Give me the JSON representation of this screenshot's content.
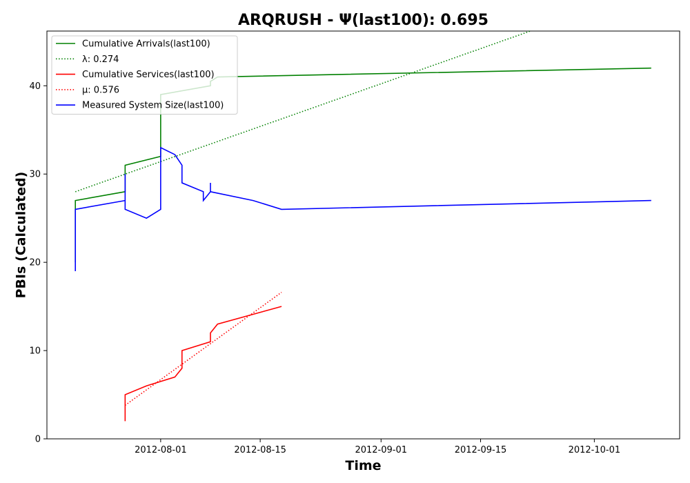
{
  "chart_data": {
    "type": "line",
    "title": "ARQRUSH -  Ψ(last100): 0.695",
    "xlabel": "Time",
    "ylabel": "PBIs (Calculated)",
    "xlim": [
      "2012-07-16",
      "2012-10-13"
    ],
    "ylim": [
      0,
      46.2
    ],
    "x_ticks": [
      "2012-08-01",
      "2012-08-15",
      "2012-09-01",
      "2012-09-15",
      "2012-10-01"
    ],
    "y_ticks": [
      0,
      10,
      20,
      30,
      40
    ],
    "grid": false,
    "legend_position": "top-left",
    "series": [
      {
        "name": "Cumulative Arrivals(last100)",
        "color": "#008000",
        "style": "solid",
        "points": [
          [
            "2012-07-20",
            20
          ],
          [
            "2012-07-20",
            27
          ],
          [
            "2012-07-27",
            28
          ],
          [
            "2012-07-27",
            31
          ],
          [
            "2012-08-01",
            32
          ],
          [
            "2012-08-01",
            32.3
          ],
          [
            "2012-08-01",
            39
          ],
          [
            "2012-08-08",
            40
          ],
          [
            "2012-08-08",
            40.5
          ],
          [
            "2012-08-09",
            41
          ],
          [
            "2012-10-09",
            42
          ]
        ]
      },
      {
        "name": "λ: 0.274",
        "color": "#008000",
        "style": "dotted",
        "points": [
          [
            "2012-07-20",
            28
          ],
          [
            "2012-09-22",
            46.2
          ]
        ]
      },
      {
        "name": "Cumulative Services(last100)",
        "color": "#ff0000",
        "style": "solid",
        "points": [
          [
            "2012-07-27",
            2
          ],
          [
            "2012-07-27",
            5
          ],
          [
            "2012-07-30",
            6
          ],
          [
            "2012-08-03",
            7
          ],
          [
            "2012-08-04",
            8
          ],
          [
            "2012-08-04",
            10
          ],
          [
            "2012-08-08",
            11
          ],
          [
            "2012-08-08",
            12
          ],
          [
            "2012-08-09",
            13
          ],
          [
            "2012-08-18",
            15
          ]
        ]
      },
      {
        "name": "μ: 0.576",
        "color": "#ff0000",
        "style": "dotted",
        "points": [
          [
            "2012-07-27",
            3.8
          ],
          [
            "2012-08-18",
            16.6
          ]
        ]
      },
      {
        "name": "Measured System Size(last100)",
        "color": "#0000ff",
        "style": "solid",
        "points": [
          [
            "2012-07-20",
            19
          ],
          [
            "2012-07-20",
            26
          ],
          [
            "2012-07-27",
            27
          ],
          [
            "2012-07-27",
            30
          ],
          [
            "2012-07-27",
            29
          ],
          [
            "2012-07-27",
            26
          ],
          [
            "2012-07-30",
            25
          ],
          [
            "2012-08-01",
            26
          ],
          [
            "2012-08-01",
            33
          ],
          [
            "2012-08-03",
            32.2
          ],
          [
            "2012-08-04",
            31
          ],
          [
            "2012-08-04",
            29
          ],
          [
            "2012-08-07",
            28
          ],
          [
            "2012-08-07",
            27
          ],
          [
            "2012-08-08",
            28
          ],
          [
            "2012-08-08",
            29
          ],
          [
            "2012-08-08",
            28
          ],
          [
            "2012-08-14",
            27
          ],
          [
            "2012-08-18",
            26
          ],
          [
            "2012-10-09",
            27
          ]
        ]
      }
    ]
  }
}
